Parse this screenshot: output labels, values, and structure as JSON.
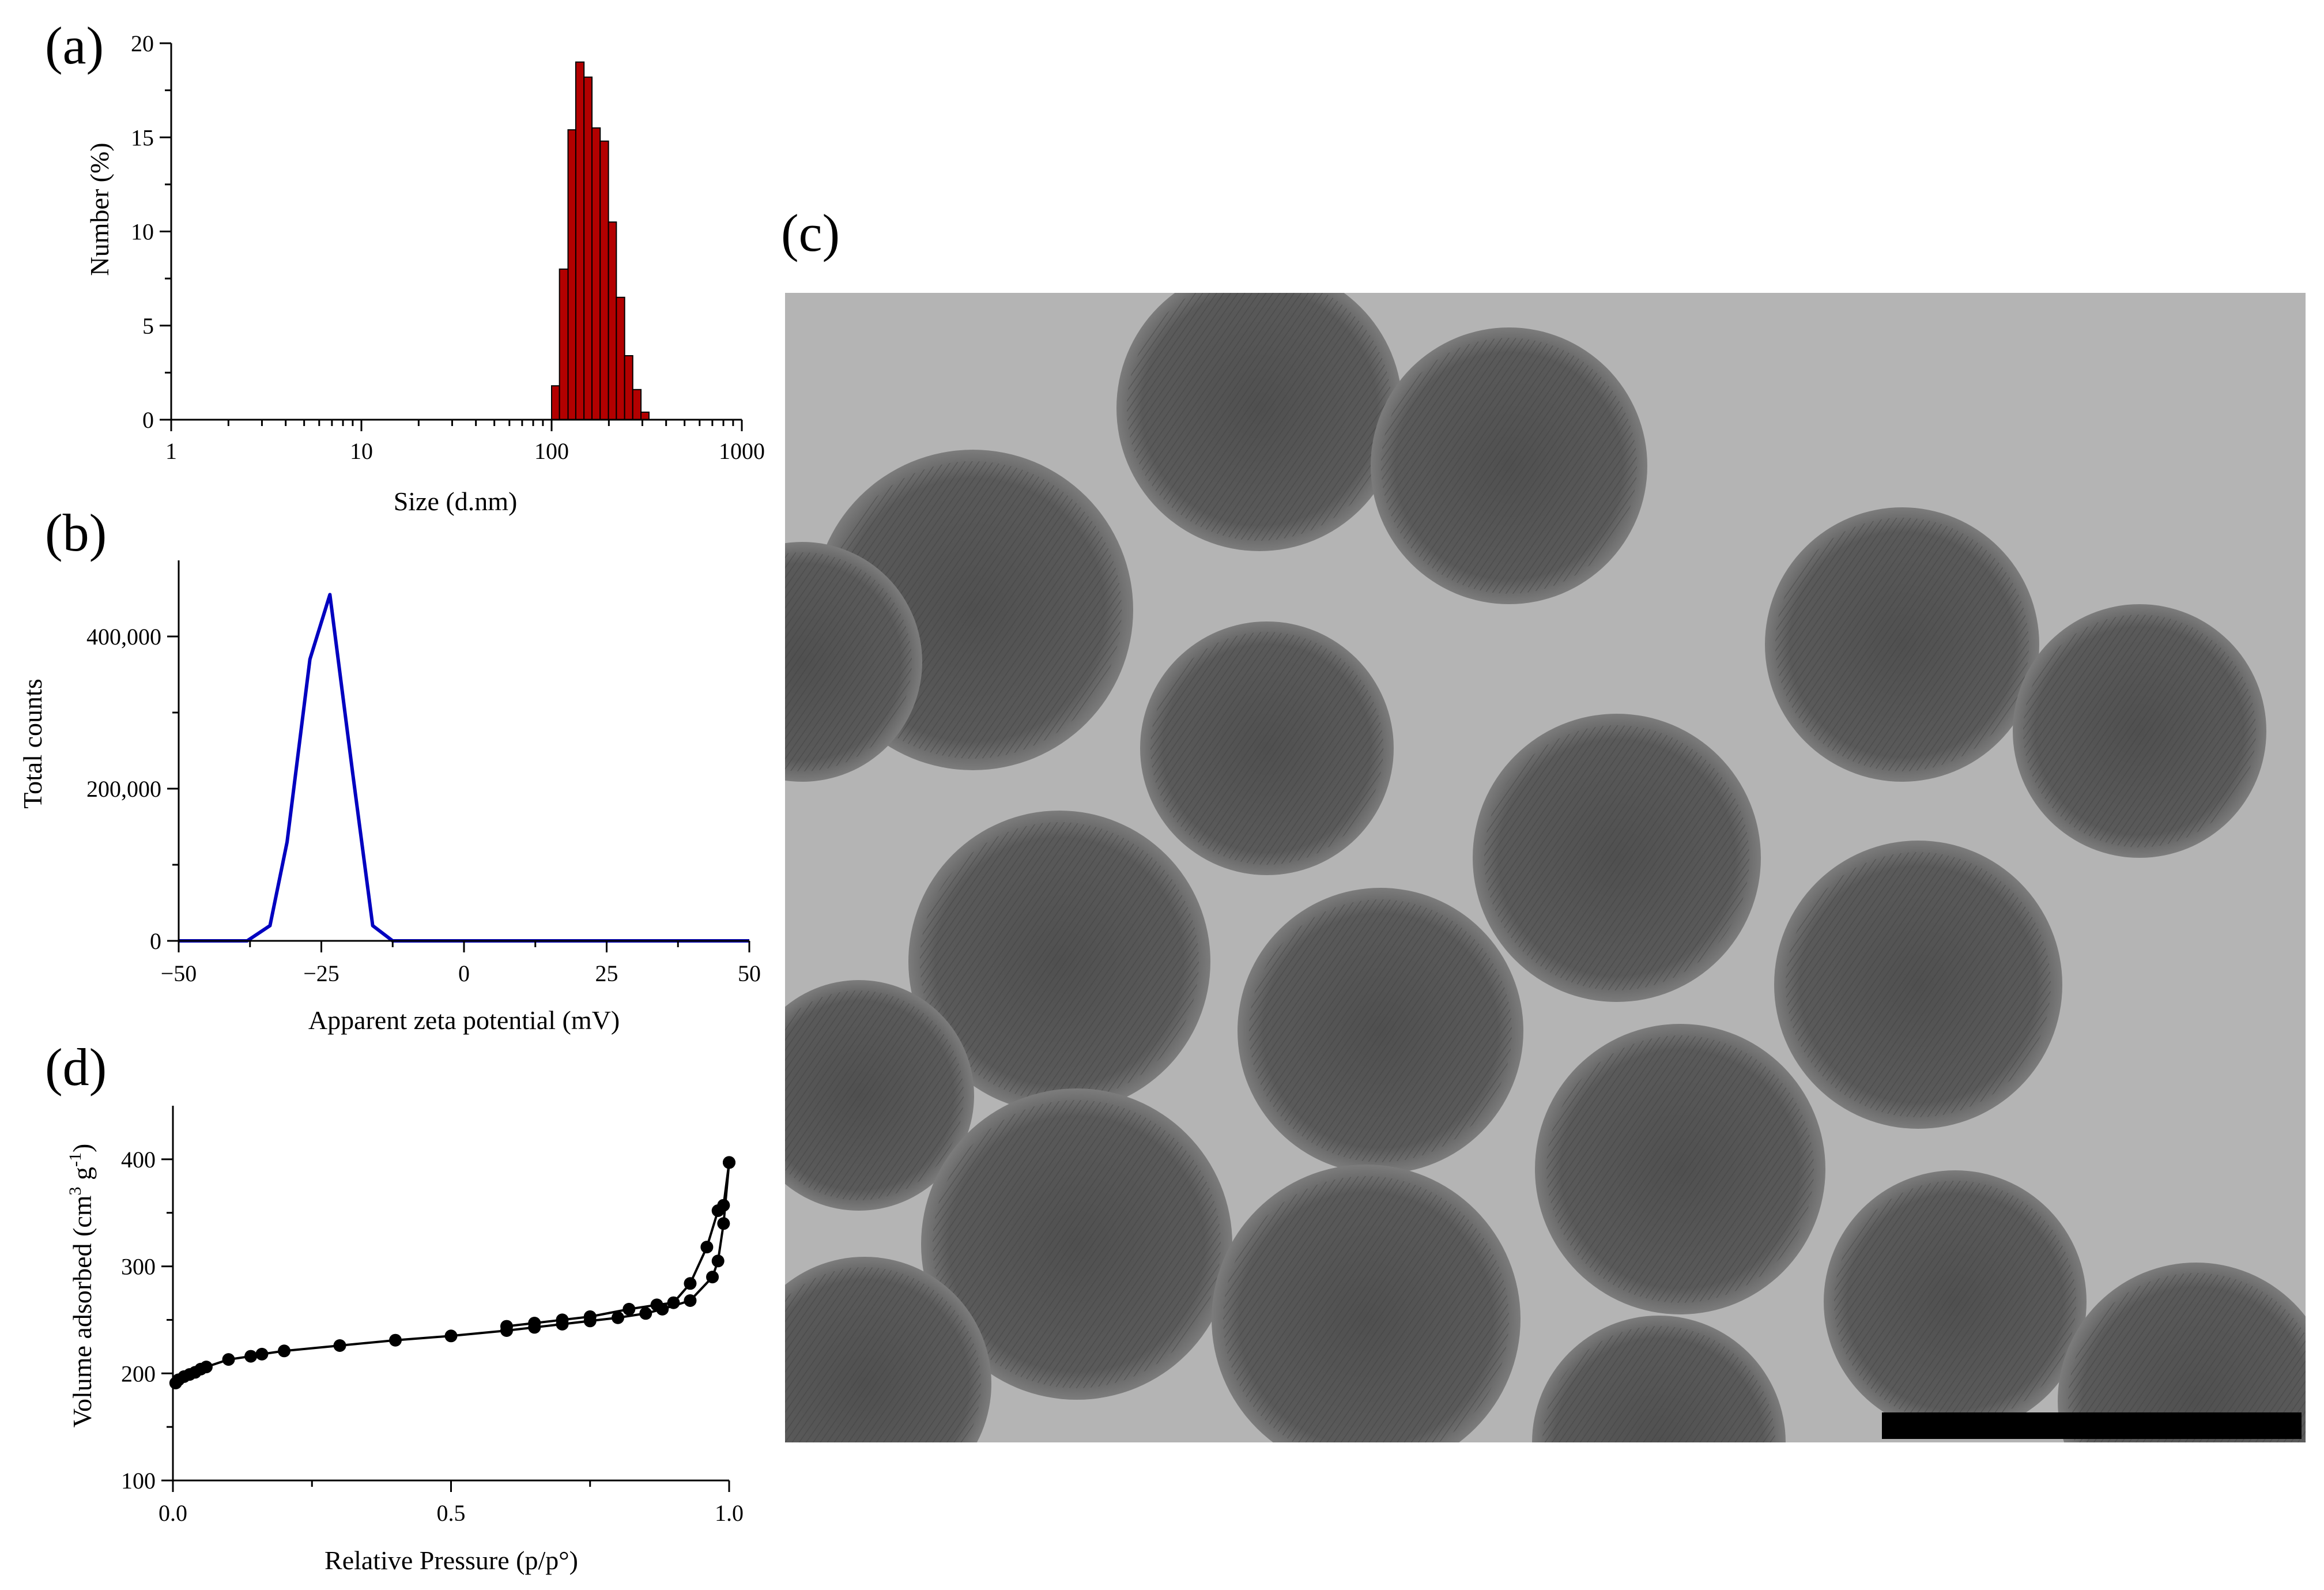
{
  "panels": {
    "a": "(a)",
    "b": "(b)",
    "c": "(c)",
    "d": "(d)"
  },
  "colors": {
    "bars": "#b30000",
    "zeta_line": "#0000c0",
    "isotherm": "#000000",
    "tem_background": "#b4b4b4"
  },
  "chart_data": [
    {
      "id": "a",
      "type": "bar",
      "xscale": "log",
      "xlabel": "Size (d.nm)",
      "ylabel": "Number (%)",
      "xlim": [
        1,
        1000
      ],
      "ylim": [
        0,
        20
      ],
      "xticks": [
        1,
        10,
        100,
        1000
      ],
      "xtick_labels": [
        "1",
        "10",
        "100",
        "1000"
      ],
      "yticks": [
        0,
        5,
        10,
        15,
        20
      ],
      "ytick_labels": [
        "0",
        "5",
        "10",
        "15",
        "20"
      ],
      "bin_edges": [
        100,
        110,
        122,
        134,
        148,
        163,
        180,
        199,
        219,
        242,
        267,
        295,
        325,
        359,
        396,
        437,
        481
      ],
      "values": [
        1.8,
        8.0,
        15.4,
        19.0,
        18.2,
        15.5,
        14.8,
        10.5,
        6.5,
        3.4,
        1.6,
        0.4,
        0.0,
        0.0,
        0.0,
        0.0
      ]
    },
    {
      "id": "b",
      "type": "line",
      "xlabel": "Apparent zeta potential (mV)",
      "ylabel": "Total counts",
      "xlim": [
        -50,
        50
      ],
      "ylim": [
        0,
        500000
      ],
      "xticks": [
        -50,
        -25,
        0,
        25,
        50
      ],
      "xtick_labels": [
        "−50",
        "−25",
        "0",
        "25",
        "50"
      ],
      "yticks": [
        0,
        200000,
        400000
      ],
      "ytick_labels": [
        "0",
        "200,000",
        "400,000"
      ],
      "x": [
        -50,
        -38,
        -34,
        -31,
        -27,
        -23.5,
        -19.5,
        -16,
        -12.5,
        50
      ],
      "y": [
        0,
        0,
        20000,
        130000,
        370000,
        455000,
        220000,
        20000,
        0,
        0
      ]
    },
    {
      "id": "d",
      "type": "line",
      "xlabel": "Relative Pressure (p/p°)",
      "ylabel_main": "Volume adsorbed (cm",
      "ylabel_sup1": "3",
      "ylabel_mid": " g",
      "ylabel_sup2": "-1",
      "ylabel_end": ")",
      "xlim": [
        0.0,
        1.0
      ],
      "ylim": [
        100,
        450
      ],
      "xticks": [
        0.0,
        0.5,
        1.0
      ],
      "xtick_labels": [
        "0.0",
        "0.5",
        "1.0"
      ],
      "yticks": [
        100,
        200,
        300,
        400
      ],
      "ytick_labels": [
        "100",
        "200",
        "300",
        "400"
      ],
      "series": [
        {
          "x": [
            0.005,
            0.01,
            0.02,
            0.03,
            0.04,
            0.05,
            0.06,
            0.1,
            0.14,
            0.16,
            0.2,
            0.3,
            0.4,
            0.5,
            0.6,
            0.65,
            0.7,
            0.75,
            0.8,
            0.85,
            0.88,
            0.93,
            0.97,
            0.98,
            0.99,
            1.0
          ],
          "y": [
            191,
            194,
            197,
            199,
            201,
            204,
            206,
            213,
            216,
            218,
            221,
            226,
            231,
            235,
            240,
            243,
            246,
            249,
            252,
            256,
            260,
            268,
            290,
            305,
            340,
            397
          ]
        },
        {
          "x": [
            1.0,
            0.99,
            0.98,
            0.96,
            0.93,
            0.9,
            0.87,
            0.82,
            0.75,
            0.7,
            0.65,
            0.6
          ],
          "y": [
            397,
            357,
            352,
            318,
            284,
            266,
            264,
            260,
            253,
            250,
            247,
            244
          ]
        }
      ]
    }
  ]
}
